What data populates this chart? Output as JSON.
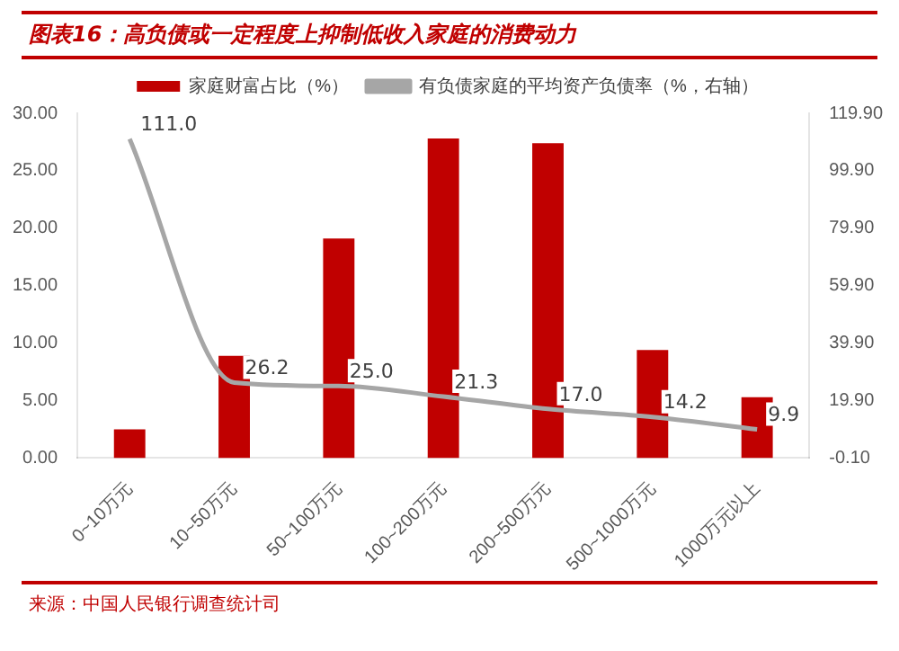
{
  "chart_data": {
    "type": "bar",
    "title": "图表16：高负债或一定程度上抑制低收入家庭的消费动力",
    "categories": [
      "0~10万元",
      "10~50万元",
      "50~100万元",
      "100~200万元",
      "200~500万元",
      "500~1000万元",
      "1000万元以上"
    ],
    "series": [
      {
        "name": "家庭财富占比（%）",
        "color": "#c00000",
        "values": [
          2.5,
          8.9,
          19.1,
          27.8,
          27.4,
          9.4,
          5.3
        ]
      },
      {
        "name": "有负债家庭的平均资产负债率（%，右轴）",
        "type": "line",
        "axis": "y2",
        "color": "#a6a6a6",
        "values": [
          111.0,
          26.2,
          25.0,
          21.3,
          17.0,
          14.2,
          9.9
        ],
        "value_labels": [
          "111.0",
          "26.2",
          "25.0",
          "21.3",
          "17.0",
          "14.2",
          "9.9"
        ]
      }
    ],
    "ylim": [
      0,
      30
    ],
    "yticks": [
      {
        "value": 0,
        "label": "0.00"
      },
      {
        "value": 5,
        "label": "5.00"
      },
      {
        "value": 10,
        "label": "10.00"
      },
      {
        "value": 15,
        "label": "15.00"
      },
      {
        "value": 20,
        "label": "20.00"
      },
      {
        "value": 25,
        "label": "25.00"
      },
      {
        "value": 30,
        "label": "30.00"
      }
    ],
    "y2lim": [
      -0.1,
      119.9
    ],
    "y2ticks": [
      {
        "value": -0.1,
        "label": "-0.10"
      },
      {
        "value": 19.9,
        "label": "19.90"
      },
      {
        "value": 39.9,
        "label": "39.90"
      },
      {
        "value": 59.9,
        "label": "59.90"
      },
      {
        "value": 79.9,
        "label": "79.90"
      },
      {
        "value": 99.9,
        "label": "99.90"
      },
      {
        "value": 119.9,
        "label": "119.90"
      }
    ],
    "grid": false,
    "legend": "top",
    "marker": "none",
    "annotations": [
      "来源：中国人民银行调查统计司"
    ]
  }
}
